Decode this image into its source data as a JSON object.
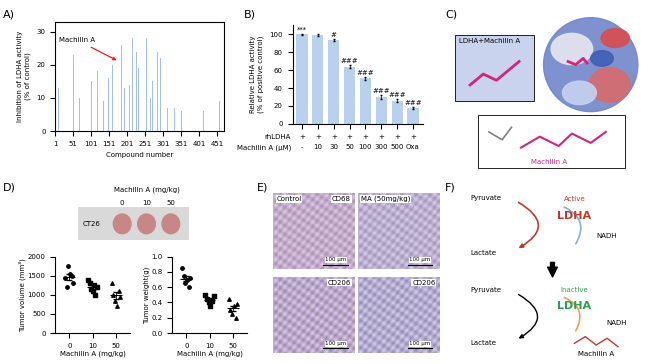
{
  "panel_labels": [
    "A)",
    "B)",
    "C)",
    "D)",
    "E)",
    "F)"
  ],
  "chart_data": [
    {
      "panel": "A)",
      "type": "bar",
      "x": [
        10,
        52,
        68,
        92,
        102,
        118,
        136,
        150,
        160,
        178,
        186,
        192,
        200,
        206,
        216,
        226,
        232,
        254,
        266,
        272,
        284,
        292,
        312,
        332,
        352,
        412,
        456
      ],
      "values": [
        13,
        23,
        10,
        22,
        15,
        18,
        9,
        16,
        20,
        21,
        26,
        13,
        31,
        14,
        28,
        24,
        19,
        28,
        10,
        15,
        24,
        22,
        7,
        7,
        6,
        6,
        9
      ],
      "color": "#a3c1e6",
      "xlim": [
        1,
        470
      ],
      "xticks": [
        1,
        51,
        101,
        151,
        201,
        251,
        301,
        351,
        401,
        451
      ],
      "ylim": [
        0,
        33
      ],
      "yticks": [
        0,
        10,
        20,
        30
      ],
      "x_label": "Compound number",
      "y_label": "Inhibition of LDHA activity\n(% of control)",
      "annotation": {
        "text": "Machilin A",
        "x": 178
      }
    },
    {
      "panel": "B)",
      "type": "bar",
      "label_rows": [
        {
          "name": "rhLDHA",
          "labels": [
            "+",
            "+",
            "+",
            "+",
            "+",
            "+",
            "+",
            "+"
          ]
        },
        {
          "name": "Machilin A (μM)",
          "labels": [
            "-",
            "10",
            "30",
            "50",
            "100",
            "300",
            "500",
            "Oxa"
          ]
        }
      ],
      "values": [
        100,
        99,
        94,
        64,
        51,
        30,
        26,
        18
      ],
      "errors": [
        1,
        1,
        1,
        1.5,
        1.5,
        2,
        1.5,
        1
      ],
      "significance": [
        "***",
        null,
        "#",
        "###",
        "###",
        "###",
        "###",
        "###"
      ],
      "color": "#b9d1ec",
      "ylim": [
        0,
        110
      ],
      "yticks": [
        0,
        20,
        40,
        60,
        80,
        100
      ],
      "y_label": "Relative LDHA activity\n(% of positive control)",
      "tick_labels": "y"
    },
    {
      "panel": "D)",
      "type": "scatter",
      "categories": [
        "0",
        "10",
        "50"
      ],
      "points": [
        [
          1450,
          1200,
          1750,
          1550,
          1500,
          1300
        ],
        [
          1400,
          1300,
          1150,
          1100,
          1250,
          1000,
          1200
        ],
        [
          1300,
          1000,
          850,
          700,
          1100,
          950
        ]
      ],
      "x_label": "Machilin A (mg/kg)",
      "y_label": "Tumor volume (mm³)",
      "ylim": [
        0,
        2000
      ],
      "yticks": [
        0,
        500,
        1000,
        1500,
        2000
      ]
    },
    {
      "panel": "D)",
      "type": "scatter",
      "categories": [
        "0",
        "10",
        "50"
      ],
      "points": [
        [
          0.85,
          0.75,
          0.65,
          0.7,
          0.6,
          0.72
        ],
        [
          0.5,
          0.45,
          0.4,
          0.35,
          0.42,
          0.48
        ],
        [
          0.45,
          0.3,
          0.25,
          0.35,
          0.2,
          0.38
        ]
      ],
      "x_label": "Machilin A (mg/kg)",
      "y_label": "Tumor weight(g)",
      "ylim": [
        0,
        1.0
      ],
      "yticks": [
        {
          "value": 0,
          "label": "0.0"
        },
        {
          "value": 0.2,
          "label": "0.2"
        },
        {
          "value": 0.4,
          "label": "0.4"
        },
        {
          "value": 0.6,
          "label": "0.6"
        },
        {
          "value": 0.8,
          "label": "0.8"
        },
        {
          "value": 1.0,
          "label": "1.0"
        }
      ]
    }
  ],
  "panel_C": {
    "inset_title": "LDHA+Machilin A",
    "ligand_label": "Machilin A"
  },
  "panel_D_photo": {
    "title": "Machilin A (mg/kg)",
    "doses": [
      "0",
      "10",
      "50"
    ],
    "cell_line": "CT26"
  },
  "panel_E": {
    "columns": [
      "Control",
      "MA (50mg/kg)"
    ],
    "markers": [
      [
        "CD68",
        null
      ],
      [
        "CD206",
        "CD206"
      ]
    ],
    "scale_bar": "100 μm"
  },
  "panel_F": {
    "active": {
      "substrate": "Pyruvate",
      "product": "Lactate",
      "state": "Active",
      "enzyme": "LDHA",
      "cofactor": "NADH"
    },
    "inactive": {
      "substrate": "Pyruvate",
      "product": "Lactate",
      "state": "Inactive",
      "enzyme": "LDHA",
      "cofactor": "NADH",
      "inhibitor": "Machilin A"
    }
  }
}
